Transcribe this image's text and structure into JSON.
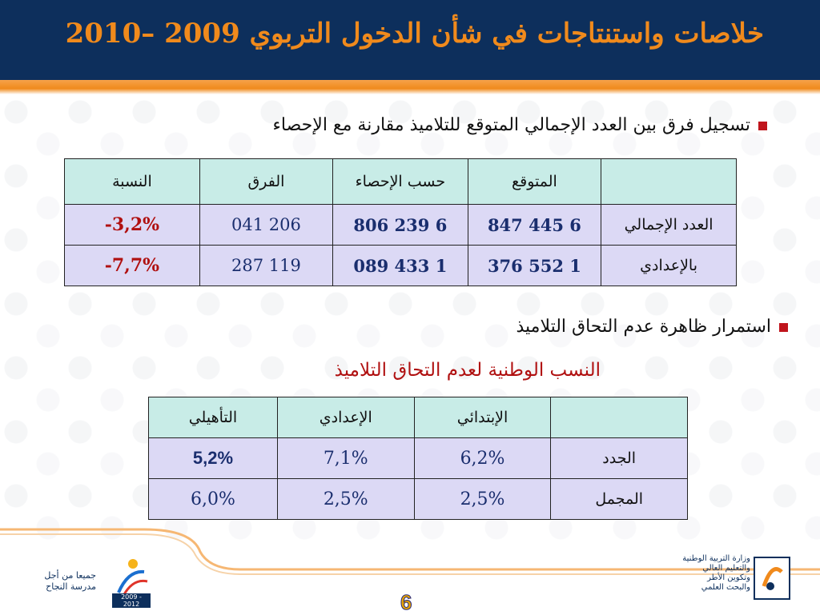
{
  "header": {
    "title": "خلاصات واستنتاجات في شأن الدخول التربوي  2009 –2010"
  },
  "bullets": [
    "تسجيل فرق بين العدد الإجمالي المتوقع للتلاميذ  مقارنة مع الإحصاء",
    "استمرار ظاهرة عدم التحاق التلاميذ"
  ],
  "table1": {
    "headers": [
      "",
      "المتوقع",
      "حسب الإحصاء",
      "الفرق",
      "النسبة"
    ],
    "rows": [
      {
        "label": "العدد الإجمالي",
        "expected": "6 445 847",
        "census": "6 239 806",
        "diff": "206 041",
        "ratio": "-3,2%"
      },
      {
        "label": "بالإعدادي",
        "expected": "1 552 376",
        "census": "1 433 089",
        "diff": "119 287",
        "ratio": "-7,7%"
      }
    ]
  },
  "subtitle": "النسب الوطنية لعدم التحاق التلاميذ",
  "table2": {
    "headers": [
      "",
      "الإبتدائي",
      "الإعدادي",
      "التأهيلي"
    ],
    "rows": [
      {
        "label": "الجدد",
        "primary": "6,2%",
        "middle": "7,1%",
        "secondary": "5,2%"
      },
      {
        "label": "المجمل",
        "primary": "2,5%",
        "middle": "2,5%",
        "secondary": "6,0%"
      }
    ]
  },
  "footer": {
    "page_number": "6",
    "left_slogan": "جميعا من أجل مدرسة النجاح",
    "badge_years": "2009 - 2012",
    "ministry": [
      "وزارة التربية الوطنية",
      "والتعليم العالي",
      "وتكوين الأطر",
      "والبحث العلمي"
    ]
  },
  "colors": {
    "header_bg": "#0d2f5c",
    "title": "#f08a1c",
    "bullet": "#c0141c",
    "table_header": "#c8ece7",
    "table_cell": "#dcd9f5"
  }
}
